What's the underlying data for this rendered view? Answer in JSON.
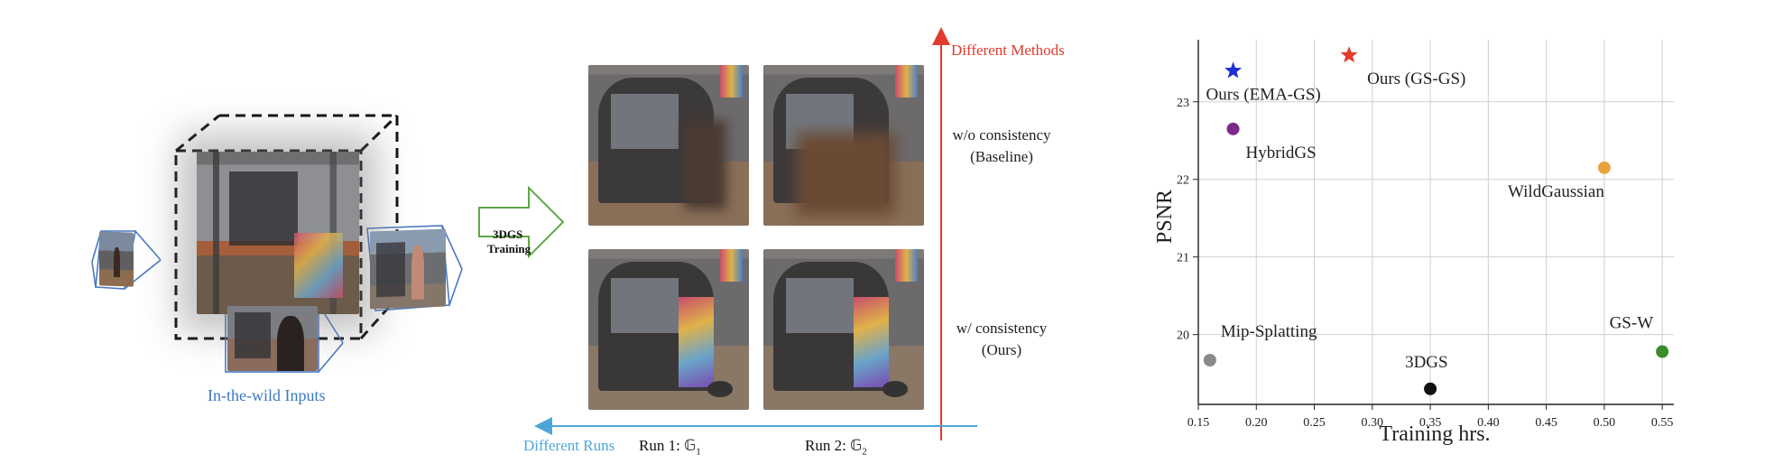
{
  "left_panel": {
    "caption": "In-the-wild Inputs",
    "caption_color": "#3a78c3"
  },
  "training_arrow": {
    "label_line1": "3DGS",
    "label_line2": "Training",
    "color": "#5ea845"
  },
  "middle_panel": {
    "methods_axis_label": "Different Methods",
    "methods_axis_color": "#e03a2e",
    "runs_axis_label": "Different Runs",
    "runs_axis_color": "#4ea6d8",
    "row_labels": [
      {
        "line1": "w/o consistency",
        "line2": "(Baseline)"
      },
      {
        "line1": "w/ consistency",
        "line2": "(Ours)"
      }
    ],
    "column_labels": [
      {
        "text": "Run 1: ",
        "symbol": "𝔾",
        "sub": "1"
      },
      {
        "text": "Run 2: ",
        "symbol": "𝔾",
        "sub": "2"
      }
    ]
  },
  "chart_data": {
    "type": "scatter",
    "xlabel": "Training hrs.",
    "ylabel": "PSNR",
    "xlim": [
      0.15,
      0.56
    ],
    "ylim": [
      19.1,
      23.8
    ],
    "xticks": [
      "0.15",
      "0.20",
      "0.25",
      "0.30",
      "0.35",
      "0.40",
      "0.45",
      "0.50",
      "0.55"
    ],
    "yticks": [
      "20",
      "21",
      "22",
      "23"
    ],
    "grid": true,
    "points": [
      {
        "name": "Ours (EMA-GS)",
        "x": 0.18,
        "y": 23.4,
        "marker": "star",
        "color": "#1f2fd6"
      },
      {
        "name": "Ours (GS-GS)",
        "x": 0.28,
        "y": 23.6,
        "marker": "star",
        "color": "#e53a2c"
      },
      {
        "name": "HybridGS",
        "x": 0.18,
        "y": 22.65,
        "marker": "circle",
        "color": "#7b2a8c"
      },
      {
        "name": "WildGaussian",
        "x": 0.5,
        "y": 22.15,
        "marker": "circle",
        "color": "#e8a43c"
      },
      {
        "name": "Mip-Splatting",
        "x": 0.16,
        "y": 19.67,
        "marker": "circle",
        "color": "#8a8a8a"
      },
      {
        "name": "3DGS",
        "x": 0.35,
        "y": 19.3,
        "marker": "circle",
        "color": "#111111"
      },
      {
        "name": "GS-W",
        "x": 0.55,
        "y": 19.78,
        "marker": "circle",
        "color": "#3c8c2c"
      }
    ]
  }
}
